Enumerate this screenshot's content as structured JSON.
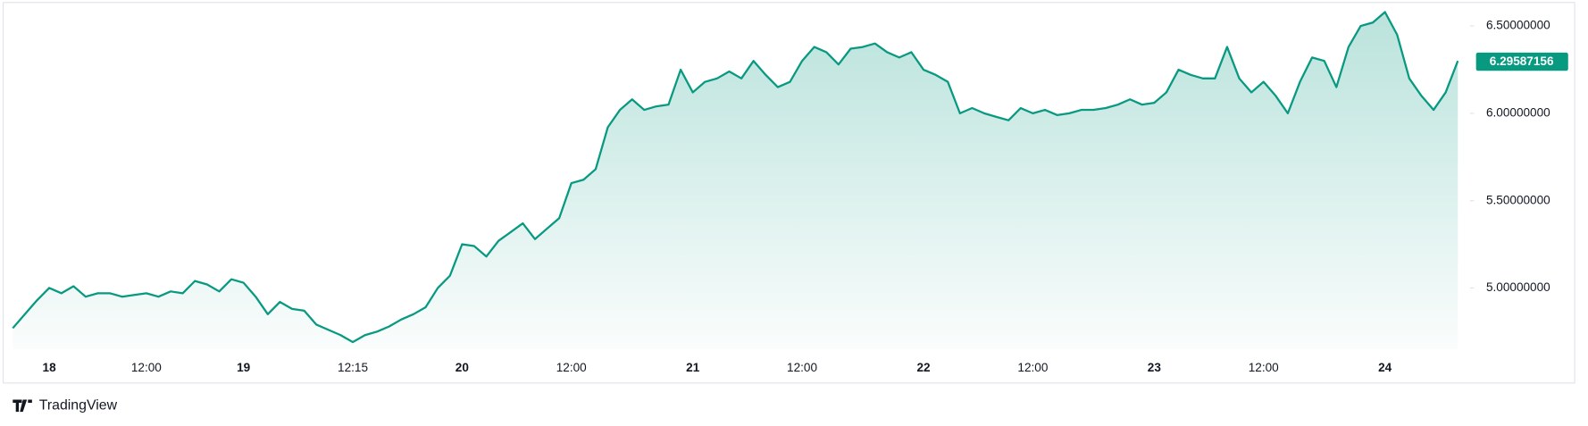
{
  "chart_data": {
    "type": "area",
    "categories": [
      null,
      null,
      null,
      "18",
      null,
      null,
      null,
      null,
      null,
      null,
      null,
      "12:00",
      null,
      null,
      null,
      null,
      null,
      null,
      null,
      "19",
      null,
      null,
      null,
      null,
      null,
      null,
      null,
      null,
      "12:15",
      null,
      null,
      null,
      null,
      null,
      null,
      null,
      null,
      "20",
      null,
      null,
      null,
      null,
      null,
      null,
      null,
      null,
      "12:00",
      null,
      null,
      null,
      null,
      null,
      null,
      null,
      null,
      null,
      "21",
      null,
      null,
      null,
      null,
      null,
      null,
      null,
      null,
      "12:00",
      null,
      null,
      null,
      null,
      null,
      null,
      null,
      null,
      null,
      "22",
      null,
      null,
      null,
      null,
      null,
      null,
      null,
      null,
      "12:00",
      null,
      null,
      null,
      null,
      null,
      null,
      null,
      null,
      null,
      "23",
      null,
      null,
      null,
      null,
      null,
      null,
      null,
      null,
      "12:00",
      null,
      null,
      null,
      null,
      null,
      null,
      null,
      null,
      null,
      "24",
      null,
      null,
      null,
      null,
      null,
      null
    ],
    "values": [
      4.77,
      4.85,
      4.93,
      5.0,
      4.97,
      5.01,
      4.95,
      4.97,
      4.97,
      4.95,
      4.96,
      4.97,
      4.95,
      4.98,
      4.97,
      5.04,
      5.02,
      4.98,
      5.05,
      5.03,
      4.95,
      4.85,
      4.92,
      4.88,
      4.87,
      4.79,
      4.76,
      4.73,
      4.69,
      4.73,
      4.75,
      4.78,
      4.82,
      4.85,
      4.89,
      5.0,
      5.07,
      5.25,
      5.24,
      5.18,
      5.27,
      5.32,
      5.37,
      5.28,
      5.34,
      5.4,
      5.6,
      5.62,
      5.68,
      5.92,
      6.02,
      6.08,
      6.02,
      6.04,
      6.05,
      6.25,
      6.12,
      6.18,
      6.2,
      6.24,
      6.2,
      6.3,
      6.22,
      6.15,
      6.18,
      6.3,
      6.38,
      6.35,
      6.28,
      6.37,
      6.38,
      6.4,
      6.35,
      6.32,
      6.35,
      6.25,
      6.22,
      6.18,
      6.0,
      6.03,
      6.0,
      5.98,
      5.96,
      6.03,
      6.0,
      6.02,
      5.99,
      6.0,
      6.02,
      6.02,
      6.03,
      6.05,
      6.08,
      6.05,
      6.06,
      6.12,
      6.25,
      6.22,
      6.2,
      6.2,
      6.38,
      6.2,
      6.12,
      6.18,
      6.1,
      6.0,
      6.18,
      6.32,
      6.3,
      6.15,
      6.38,
      6.5,
      6.52,
      6.58,
      6.45,
      6.2,
      6.1,
      6.02,
      6.12,
      6.3
    ],
    "color": "#089981",
    "ylim": [
      4.65,
      6.62
    ],
    "yticks": [
      {
        "value": 5.0,
        "label": "5.00000000"
      },
      {
        "value": 5.5,
        "label": "5.50000000"
      },
      {
        "value": 6.0,
        "label": "6.00000000"
      },
      {
        "value": 6.5,
        "label": "6.50000000"
      }
    ],
    "current_price": 6.29587156,
    "branding": "TradingView"
  }
}
